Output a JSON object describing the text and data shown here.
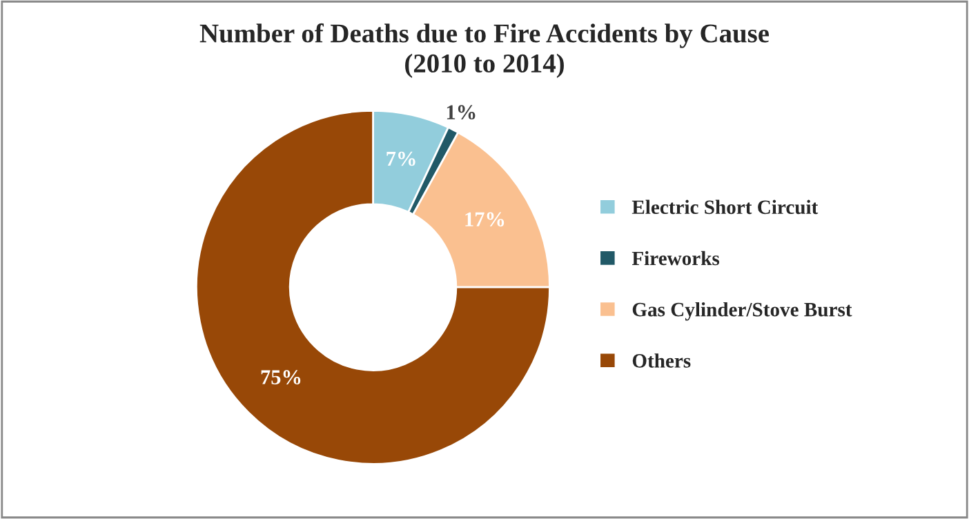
{
  "chart_data": {
    "type": "donut",
    "title": "Number of Deaths due to Fire Accidents by Cause\n(2010 to 2014)",
    "categories": [
      "Electric Short Circuit",
      "Fireworks",
      "Gas Cylinder/Stove Burst",
      "Others"
    ],
    "values": [
      7,
      1,
      17,
      75
    ],
    "colors": [
      "#92cddc",
      "#215967",
      "#fac090",
      "#984807"
    ],
    "value_labels": [
      "7%",
      "1%",
      "17%",
      "75%"
    ],
    "legend": "right"
  }
}
